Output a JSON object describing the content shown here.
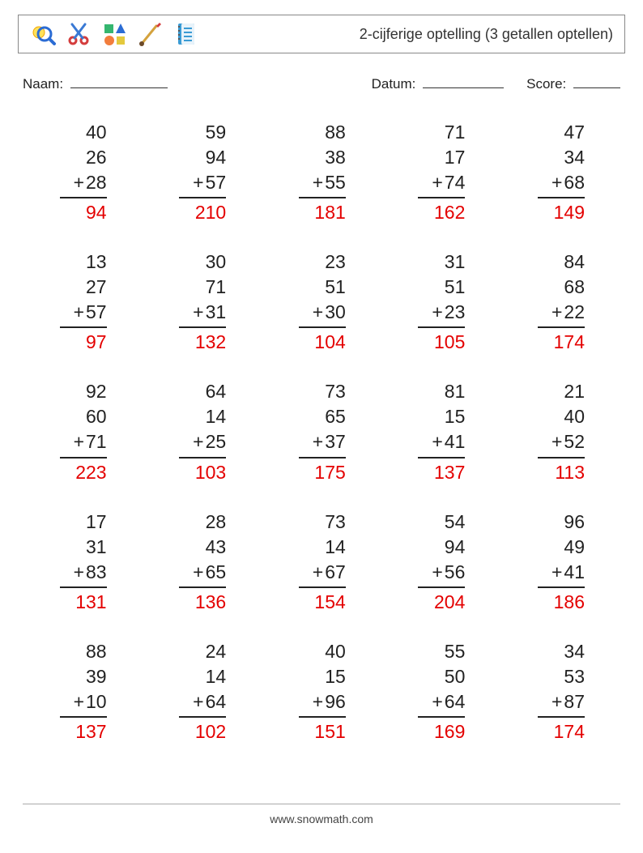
{
  "header": {
    "title": "2-cijferige optelling (3 getallen optellen)",
    "icons": [
      "magnifier",
      "scissors",
      "shapes",
      "paintbrush",
      "notebook"
    ]
  },
  "labels": {
    "name": "Naam:",
    "date": "Datum:",
    "score": "Score:"
  },
  "style": {
    "number_color": "#222222",
    "answer_color": "#e40000",
    "rule_color": "#222222",
    "border_color": "#888888",
    "background_color": "#ffffff",
    "font_size_problem": 23,
    "font_size_title": 18,
    "font_size_labels": 17,
    "columns": 5,
    "rows": 5
  },
  "problems": [
    {
      "a": 40,
      "b": 26,
      "c": 28,
      "ans": 94
    },
    {
      "a": 59,
      "b": 94,
      "c": 57,
      "ans": 210
    },
    {
      "a": 88,
      "b": 38,
      "c": 55,
      "ans": 181
    },
    {
      "a": 71,
      "b": 17,
      "c": 74,
      "ans": 162
    },
    {
      "a": 47,
      "b": 34,
      "c": 68,
      "ans": 149
    },
    {
      "a": 13,
      "b": 27,
      "c": 57,
      "ans": 97
    },
    {
      "a": 30,
      "b": 71,
      "c": 31,
      "ans": 132
    },
    {
      "a": 23,
      "b": 51,
      "c": 30,
      "ans": 104
    },
    {
      "a": 31,
      "b": 51,
      "c": 23,
      "ans": 105
    },
    {
      "a": 84,
      "b": 68,
      "c": 22,
      "ans": 174
    },
    {
      "a": 92,
      "b": 60,
      "c": 71,
      "ans": 223
    },
    {
      "a": 64,
      "b": 14,
      "c": 25,
      "ans": 103
    },
    {
      "a": 73,
      "b": 65,
      "c": 37,
      "ans": 175
    },
    {
      "a": 81,
      "b": 15,
      "c": 41,
      "ans": 137
    },
    {
      "a": 21,
      "b": 40,
      "c": 52,
      "ans": 113
    },
    {
      "a": 17,
      "b": 31,
      "c": 83,
      "ans": 131
    },
    {
      "a": 28,
      "b": 43,
      "c": 65,
      "ans": 136
    },
    {
      "a": 73,
      "b": 14,
      "c": 67,
      "ans": 154
    },
    {
      "a": 54,
      "b": 94,
      "c": 56,
      "ans": 204
    },
    {
      "a": 96,
      "b": 49,
      "c": 41,
      "ans": 186
    },
    {
      "a": 88,
      "b": 39,
      "c": 10,
      "ans": 137
    },
    {
      "a": 24,
      "b": 14,
      "c": 64,
      "ans": 102
    },
    {
      "a": 40,
      "b": 15,
      "c": 96,
      "ans": 151
    },
    {
      "a": 55,
      "b": 50,
      "c": 64,
      "ans": 169
    },
    {
      "a": 34,
      "b": 53,
      "c": 87,
      "ans": 174
    }
  ],
  "footer": {
    "text": "www.snowmath.com"
  }
}
